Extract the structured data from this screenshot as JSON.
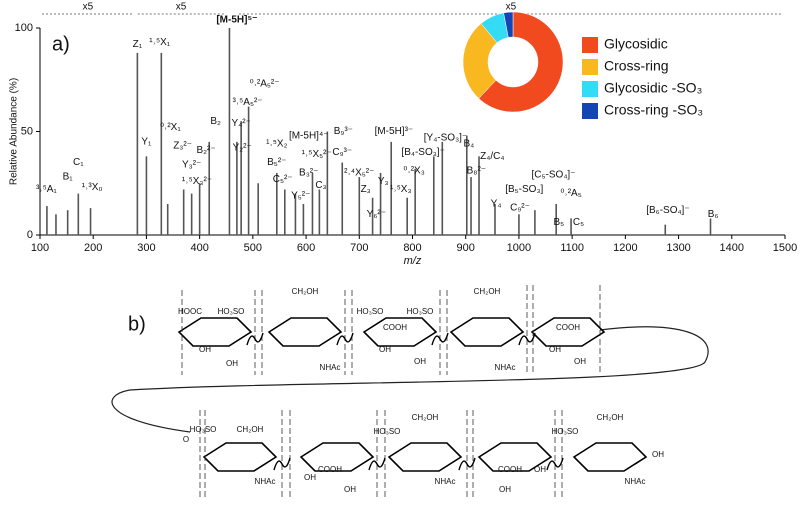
{
  "chart_data": [
    {
      "type": "bar",
      "panel_label": "a)",
      "y_label": "Relative Abundance (%)",
      "x_label": "m/z",
      "x": [
        113,
        130,
        152,
        172,
        195,
        283,
        300,
        328,
        340,
        370,
        385,
        400,
        418,
        456,
        470,
        478,
        492,
        510,
        545,
        560,
        580,
        595,
        612,
        625,
        640,
        668,
        700,
        725,
        740,
        760,
        790,
        805,
        840,
        856,
        902,
        910,
        925,
        955,
        1000,
        1030,
        1070,
        1098,
        1275,
        1360
      ],
      "values": [
        14,
        10,
        12,
        20,
        13,
        88,
        38,
        88,
        15,
        22,
        20,
        25,
        45,
        100,
        45,
        55,
        62,
        25,
        30,
        22,
        20,
        15,
        30,
        22,
        50,
        35,
        28,
        18,
        30,
        45,
        18,
        32,
        38,
        45,
        48,
        28,
        38,
        15,
        10,
        12,
        15,
        8,
        5,
        8
      ],
      "color": "#555555",
      "xlim": [
        100,
        1500
      ],
      "xticks": [
        100,
        200,
        300,
        400,
        500,
        600,
        700,
        800,
        900,
        1000,
        1100,
        1200,
        1300,
        1400,
        1500
      ],
      "ylim": [
        0,
        100
      ],
      "yticks": [
        0,
        50,
        100
      ],
      "zooms": [
        {
          "label": "x5",
          "range": [
            100,
            280
          ]
        },
        {
          "label": "x5",
          "range": [
            280,
            450
          ]
        },
        {
          "label": "x5",
          "range": [
            470,
            1500
          ]
        }
      ],
      "annotations": [
        {
          "text": "³˒⁵A₁",
          "x": 112,
          "y": 22
        },
        {
          "text": "B₁",
          "x": 152,
          "y": 28
        },
        {
          "text": "C₁",
          "x": 172,
          "y": 35
        },
        {
          "text": "¹˒³X₀",
          "x": 198,
          "y": 23
        },
        {
          "text": "Z₁",
          "x": 283,
          "y": 92
        },
        {
          "text": "¹˒⁵X₁",
          "x": 325,
          "y": 93
        },
        {
          "text": "Y₁",
          "x": 300,
          "y": 45
        },
        {
          "text": "⁰˒²X₁",
          "x": 345,
          "y": 52
        },
        {
          "text": "Z₃²⁻",
          "x": 368,
          "y": 43
        },
        {
          "text": "Y₃²⁻",
          "x": 385,
          "y": 34
        },
        {
          "text": "¹˒⁵X₃²⁻",
          "x": 395,
          "y": 26
        },
        {
          "text": "B₂²⁻",
          "x": 412,
          "y": 41
        },
        {
          "text": "B₂",
          "x": 430,
          "y": 55
        },
        {
          "text": "[M-5H]⁵⁻",
          "x": 470,
          "y": 104
        },
        {
          "text": "³˒⁵A₅²⁻",
          "x": 490,
          "y": 64
        },
        {
          "text": "⁰˒²A₅²⁻",
          "x": 522,
          "y": 73
        },
        {
          "text": "Y₄²⁻",
          "x": 478,
          "y": 54
        },
        {
          "text": "Y₂²⁻",
          "x": 480,
          "y": 42
        },
        {
          "text": "¹˒⁵X₂",
          "x": 545,
          "y": 44
        },
        {
          "text": "B₅²⁻",
          "x": 545,
          "y": 35
        },
        {
          "text": "C₅²⁻",
          "x": 556,
          "y": 27
        },
        {
          "text": "[M-5H]⁴⁻",
          "x": 605,
          "y": 48
        },
        {
          "text": "¹˒⁵X₅²⁻",
          "x": 620,
          "y": 39
        },
        {
          "text": "B₃²⁻",
          "x": 605,
          "y": 30
        },
        {
          "text": "C₃",
          "x": 628,
          "y": 24
        },
        {
          "text": "Y₅²⁻",
          "x": 590,
          "y": 19
        },
        {
          "text": "B₉³⁻",
          "x": 670,
          "y": 50
        },
        {
          "text": "C₉³⁻",
          "x": 668,
          "y": 40
        },
        {
          "text": "²˒⁴X₅²⁻",
          "x": 700,
          "y": 30
        },
        {
          "text": "Z₃",
          "x": 712,
          "y": 22
        },
        {
          "text": "Y₃",
          "x": 745,
          "y": 26
        },
        {
          "text": "Y₆²⁻",
          "x": 732,
          "y": 10
        },
        {
          "text": "[M-5H]³⁻",
          "x": 765,
          "y": 50
        },
        {
          "text": "¹˒⁵X₃",
          "x": 778,
          "y": 22
        },
        {
          "text": "⁰˒²X₃",
          "x": 803,
          "y": 31
        },
        {
          "text": "[B₄-SO₃]⁻",
          "x": 820,
          "y": 40
        },
        {
          "text": "[Y₄-SO₃]⁻",
          "x": 862,
          "y": 47
        },
        {
          "text": "B₄",
          "x": 906,
          "y": 44
        },
        {
          "text": "B₈²⁻",
          "x": 920,
          "y": 31
        },
        {
          "text": "Z₄/C₄",
          "x": 950,
          "y": 38
        },
        {
          "text": "Y₄",
          "x": 957,
          "y": 15
        },
        {
          "text": "[B₅-SO₃]",
          "x": 1010,
          "y": 22
        },
        {
          "text": "C₉²⁻",
          "x": 1002,
          "y": 13
        },
        {
          "text": "[C₅-SO₄]⁻",
          "x": 1065,
          "y": 29
        },
        {
          "text": "⁰˒²A₅",
          "x": 1098,
          "y": 20
        },
        {
          "text": "B₅",
          "x": 1075,
          "y": 6
        },
        {
          "text": "C₅",
          "x": 1112,
          "y": 6
        },
        {
          "text": "[B₆-SO₄]⁻",
          "x": 1280,
          "y": 12
        },
        {
          "text": "B₆",
          "x": 1365,
          "y": 10
        }
      ]
    },
    {
      "type": "pie",
      "categories": [
        "Glycosidic",
        "Cross-ring",
        "Glycosidic -SO₃",
        "Cross-ring -SO₃"
      ],
      "values": [
        62,
        27,
        8,
        3
      ],
      "colors": [
        "#f04a1e",
        "#f9b820",
        "#34dbf5",
        "#1346b4"
      ]
    }
  ],
  "structure": {
    "panel_label": "b)",
    "top": [
      "HOOC",
      "OH",
      "OH",
      "HO₃SO",
      "CH₂OH",
      "NHAc",
      "HO₃SO",
      "COOH",
      "OH",
      "OH",
      "HO₃SO",
      "CH₂OH",
      "NHAc",
      "COOH",
      "OH",
      "OH"
    ],
    "bottom": [
      "HO₃SO",
      "O",
      "CH₂OH",
      "NHAc",
      "COOH",
      "OH",
      "OH",
      "HO₃SO",
      "CH₂OH",
      "NHAc",
      "COOH",
      "OH",
      "OH",
      "HO₃SO",
      "CH₂OH",
      "NHAc",
      "OH"
    ]
  }
}
